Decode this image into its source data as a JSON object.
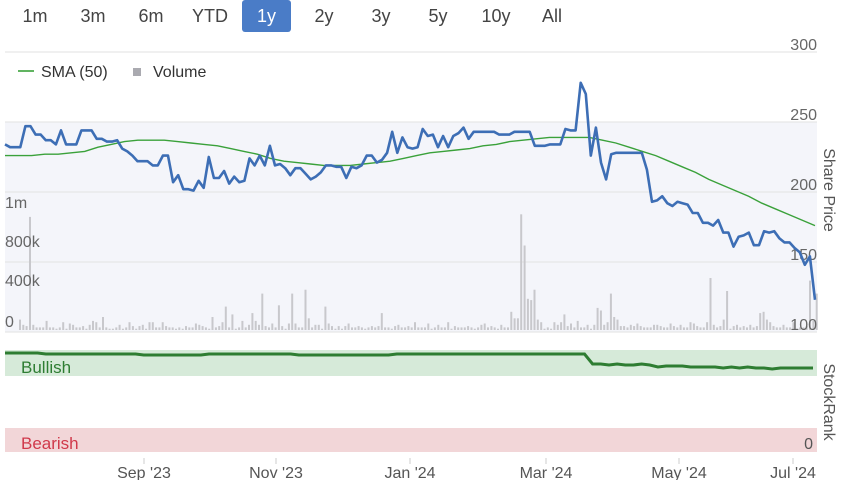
{
  "range_selector": {
    "buttons": [
      "1m",
      "3m",
      "6m",
      "YTD",
      "1y",
      "2y",
      "3y",
      "5y",
      "10y",
      "All"
    ],
    "active": "1y"
  },
  "legend": {
    "sma_label": "SMA (50)",
    "volume_label": "Volume"
  },
  "stockrank": {
    "axis_title": "StockRank",
    "bullish_label": "Bullish",
    "bearish_label": "Bearish",
    "zero_label": "0"
  },
  "colors": {
    "price_line": "#3d6eb5",
    "sma_line": "#3aa13a",
    "volume_bar": "#c8c8cc",
    "bullish_band": "#d6ead9",
    "bearish_band": "#f2d6d8",
    "rank_line": "#2e7d32",
    "bullish_text": "#2e7d32",
    "bearish_text": "#d0394b",
    "active_button": "#4a7cc7",
    "grid": "#e2e2e2"
  },
  "chart_data": [
    {
      "type": "line",
      "y_axis_title": "Share Price",
      "y_ticks": [
        100,
        150,
        200,
        250,
        300
      ],
      "ylim": [
        100,
        300
      ],
      "x_ticks": [
        "Sep '23",
        "Nov '23",
        "Jan '24",
        "Mar '24",
        "May '24",
        "Jul '24"
      ],
      "series": [
        {
          "name": "Share Price",
          "values": [
            234,
            232,
            232,
            232,
            247,
            247,
            241,
            241,
            237,
            237,
            234,
            244,
            234,
            234,
            234,
            244,
            244,
            244,
            238,
            238,
            236,
            236,
            237,
            231,
            229,
            226,
            222,
            222,
            222,
            219,
            219,
            226,
            226,
            207,
            212,
            202,
            202,
            201,
            208,
            203,
            225,
            210,
            210,
            215,
            206,
            211,
            207,
            208,
            224,
            219,
            226,
            219,
            233,
            219,
            220,
            217,
            212,
            217,
            217,
            213,
            209,
            211,
            214,
            219,
            219,
            218,
            218,
            210,
            218,
            217,
            219,
            226,
            226,
            221,
            223,
            228,
            243,
            228,
            239,
            232,
            231,
            232,
            245,
            240,
            241,
            232,
            240,
            232,
            240,
            242,
            246,
            238,
            243,
            243,
            243,
            243,
            243,
            241,
            241,
            241,
            243,
            243,
            243,
            243,
            233,
            233,
            233,
            234,
            234,
            234,
            245,
            244,
            244,
            278,
            270,
            226,
            246,
            221,
            209,
            227,
            228,
            228,
            228,
            228,
            228,
            228,
            216,
            193,
            194,
            197,
            192,
            190,
            193,
            192,
            191,
            185,
            185,
            178,
            178,
            176,
            180,
            171,
            171,
            161,
            168,
            169,
            171,
            162,
            162,
            172,
            171,
            172,
            167,
            164,
            164,
            160,
            157,
            148,
            154,
            123
          ]
        },
        {
          "name": "SMA (50)",
          "values": [
            226,
            226,
            226,
            227,
            227,
            228,
            229,
            232,
            234,
            236,
            237,
            237,
            237,
            236,
            235,
            234,
            233,
            231,
            229,
            227,
            224,
            222,
            221,
            220,
            219,
            219,
            219,
            220,
            221,
            222,
            224,
            226,
            228,
            229,
            230,
            231,
            233,
            234,
            236,
            237,
            238,
            239,
            239,
            239,
            239,
            237,
            235,
            232,
            229,
            226,
            222,
            218,
            214,
            209,
            205,
            201,
            197,
            192,
            188,
            184,
            180,
            176
          ]
        }
      ]
    },
    {
      "type": "bar",
      "series": [
        {
          "name": "Volume",
          "unit_ticks": [
            "0",
            "400k",
            "800k",
            "1m"
          ]
        }
      ],
      "y_ticks": [
        "0",
        "400k",
        "800k",
        "1m"
      ],
      "ylim": [
        0,
        1000000
      ],
      "values": [
        80000,
        40000,
        30000,
        870000,
        40000,
        20000,
        20000,
        20000,
        70000,
        20000,
        20000,
        10000,
        20000,
        60000,
        10000,
        50000,
        40000,
        20000,
        20000,
        30000,
        10000,
        40000,
        70000,
        60000,
        20000,
        100000,
        20000,
        10000,
        10000,
        20000,
        40000,
        10000,
        20000,
        60000,
        30000,
        10000,
        30000,
        40000,
        10000,
        60000,
        60000,
        20000,
        20000,
        60000,
        30000,
        20000,
        20000,
        10000,
        20000,
        10000,
        30000,
        20000,
        20000,
        50000,
        40000,
        30000,
        20000,
        10000,
        100000,
        20000,
        30000,
        60000,
        180000,
        20000,
        120000,
        10000,
        20000,
        70000,
        20000,
        40000,
        130000,
        70000,
        40000,
        280000,
        30000,
        20000,
        50000,
        20000,
        190000,
        30000,
        10000,
        50000,
        280000,
        50000,
        20000,
        20000,
        310000,
        90000,
        20000,
        40000,
        40000,
        10000,
        180000,
        50000,
        30000,
        10000,
        30000,
        10000,
        30000,
        50000,
        20000,
        20000,
        30000,
        20000,
        10000,
        20000,
        30000,
        20000,
        30000,
        130000,
        20000,
        20000,
        10000,
        30000,
        40000,
        20000,
        20000,
        30000,
        20000,
        60000,
        20000,
        20000,
        20000,
        50000,
        10000,
        20000,
        40000,
        20000,
        20000,
        60000,
        10000,
        30000,
        20000,
        20000,
        20000,
        30000,
        20000,
        10000,
        20000,
        40000,
        50000,
        20000,
        30000,
        20000,
        10000,
        40000,
        20000,
        20000,
        140000,
        90000,
        90000,
        890000,
        650000,
        240000,
        230000,
        310000,
        80000,
        60000,
        10000,
        20000,
        10000,
        60000,
        40000,
        60000,
        120000,
        30000,
        50000,
        20000,
        70000,
        20000,
        20000,
        40000,
        10000,
        40000,
        170000,
        150000,
        40000,
        60000,
        280000,
        100000,
        80000,
        30000,
        30000,
        20000,
        40000,
        30000,
        50000,
        30000,
        20000,
        20000,
        20000,
        40000,
        40000,
        30000,
        20000,
        20000,
        50000,
        30000,
        20000,
        40000,
        20000,
        20000,
        60000,
        50000,
        30000,
        20000,
        20000,
        60000,
        400000,
        40000,
        20000,
        30000,
        80000,
        300000,
        10000,
        30000,
        40000,
        20000,
        30000,
        20000,
        40000,
        20000,
        30000,
        130000,
        140000,
        80000,
        60000,
        30000,
        20000,
        20000,
        40000,
        20000,
        20000,
        60000,
        10000,
        20000,
        20000,
        30000,
        380000,
        70000,
        280000
      ]
    },
    {
      "type": "line",
      "series": [
        {
          "name": "StockRank",
          "values": [
            99,
            99,
            99,
            99,
            99,
            98,
            98,
            98,
            98,
            98,
            98,
            98,
            98,
            98,
            98,
            98,
            98,
            97,
            97,
            97,
            97,
            97,
            97,
            97,
            97,
            98,
            98,
            98,
            98,
            98,
            98,
            98,
            98,
            98,
            98,
            98,
            97,
            97,
            97,
            97,
            97,
            97,
            97,
            97,
            97,
            97,
            97,
            97,
            98,
            98,
            98,
            98,
            98,
            98,
            98,
            98,
            98,
            98,
            98,
            98,
            98,
            98,
            98,
            98,
            98,
            98,
            98,
            98,
            98,
            98,
            98,
            98,
            88,
            88,
            87,
            88,
            87,
            87,
            88,
            87,
            85,
            86,
            86,
            86,
            85,
            85,
            85,
            85,
            84,
            85,
            84,
            85,
            84,
            84,
            83,
            84,
            84,
            84,
            84,
            84
          ]
        }
      ],
      "ylim": [
        0,
        100
      ]
    }
  ]
}
